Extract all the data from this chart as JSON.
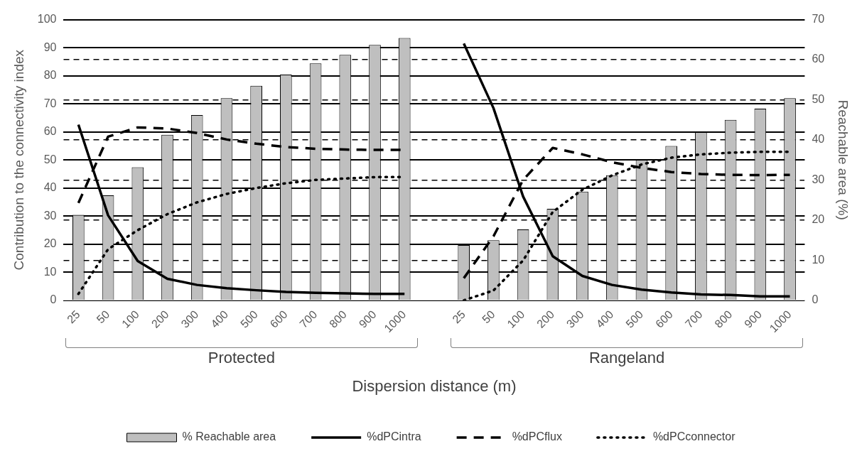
{
  "chart_data": {
    "type": "bar",
    "xlabel": "Dispersion distance (m)",
    "ylabel": "Contribution to the connectivity index",
    "y2label": "Reachable area (%)",
    "categories": [
      "25",
      "50",
      "100",
      "200",
      "300",
      "400",
      "500",
      "600",
      "700",
      "800",
      "900",
      "1000",
      null,
      "25",
      "50",
      "100",
      "200",
      "300",
      "400",
      "500",
      "600",
      "700",
      "800",
      "900",
      "1000"
    ],
    "annotations": [
      "Protected",
      "Rangeland"
    ],
    "series": [
      {
        "name": "% Reachable area",
        "axis": "y2",
        "color": "#bfbfbf",
        "values": [
          21.3,
          26.2,
          33.2,
          41.3,
          46.2,
          50.4,
          53.5,
          56.3,
          59.1,
          61.2,
          63.7,
          65.4,
          null,
          13.8,
          15.0,
          17.7,
          22.8,
          27.1,
          31.2,
          35.0,
          38.5,
          41.9,
          45.0,
          47.8,
          50.4
        ]
      },
      {
        "name": "%dPCintra",
        "type": "line",
        "color": "#000000",
        "line_style": "solid",
        "values": [
          62.6,
          30.3,
          14.0,
          7.7,
          5.5,
          4.3,
          3.6,
          3.0,
          2.7,
          2.5,
          2.3,
          2.3,
          null,
          91.5,
          68.5,
          37,
          15.7,
          8.7,
          5.5,
          3.8,
          2.8,
          2.1,
          1.9,
          1.4,
          1.4
        ]
      },
      {
        "name": "%dPCflux",
        "type": "line",
        "color": "#000000",
        "line_style": "dashed",
        "values": [
          34.7,
          58.3,
          61.6,
          61.2,
          59.6,
          57.3,
          55.8,
          54.6,
          54,
          53.7,
          53.6,
          53.6,
          null,
          7.9,
          22.8,
          42.9,
          54.3,
          52,
          49.2,
          47.2,
          45.7,
          45,
          44.7,
          44.6,
          44.7
        ]
      },
      {
        "name": "%dPCconnector",
        "type": "line",
        "color": "#000000",
        "line_style": "dotted",
        "values": [
          2.3,
          18.2,
          25,
          30.7,
          34.9,
          37.9,
          40,
          41.7,
          42.9,
          43.4,
          43.9,
          43.9,
          null,
          0,
          3.5,
          14.2,
          31.5,
          39.4,
          44.5,
          48.4,
          50.8,
          52,
          52.6,
          52.9,
          52.9
        ]
      }
    ],
    "ylim": [
      0,
      100
    ],
    "yticks": [
      0,
      10,
      20,
      30,
      40,
      50,
      60,
      70,
      80,
      90,
      100
    ],
    "y2lim": [
      0,
      70
    ],
    "y2ticks": [
      0,
      10,
      20,
      30,
      40,
      50,
      60,
      70
    ],
    "grid": true,
    "legend": "bottom",
    "marker": "none"
  }
}
